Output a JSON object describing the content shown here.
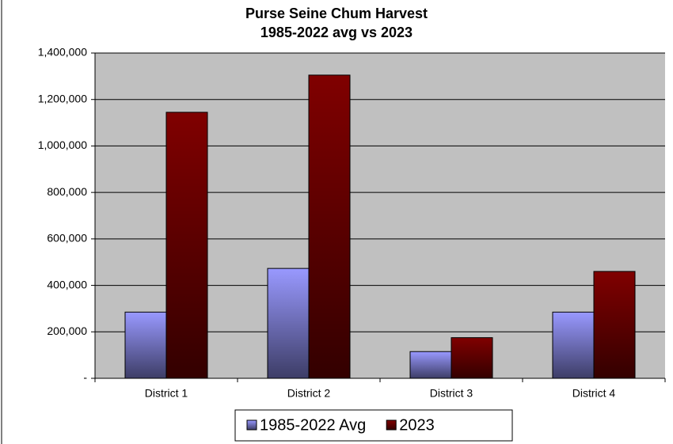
{
  "chart_data": {
    "type": "bar",
    "title": [
      "Purse Seine Chum Harvest",
      "1985-2022 avg vs 2023"
    ],
    "categories": [
      "District 1",
      "District 2",
      "District 3",
      "District 4"
    ],
    "series": [
      {
        "name": "1985-2022 Avg",
        "color": "#9999ff",
        "values": [
          285000,
          473000,
          115000,
          285000
        ]
      },
      {
        "name": "2023",
        "color": "#800000",
        "values": [
          1145000,
          1305000,
          175000,
          460000
        ]
      }
    ],
    "ylim": [
      0,
      1400000
    ],
    "yticks": [
      {
        "value": 0,
        "label": "-"
      },
      {
        "value": 200000,
        "label": "200,000"
      },
      {
        "value": 400000,
        "label": "400,000"
      },
      {
        "value": 600000,
        "label": "600,000"
      },
      {
        "value": 800000,
        "label": "800,000"
      },
      {
        "value": 1000000,
        "label": "1,000,000"
      },
      {
        "value": 1200000,
        "label": "1,200,000"
      },
      {
        "value": 1400000,
        "label": "1,400,000"
      }
    ],
    "grid": true,
    "legend": "bottom"
  }
}
